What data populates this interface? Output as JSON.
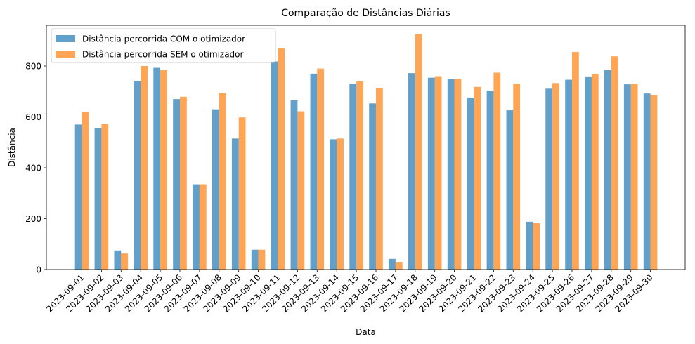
{
  "chart_data": {
    "type": "bar",
    "title": "Comparação de Distâncias Diárias",
    "xlabel": "Data",
    "ylabel": "Distância",
    "ylim": [
      0,
      960
    ],
    "yticks": [
      0,
      200,
      400,
      600,
      800
    ],
    "legend_position": "top-left",
    "grid": false,
    "categories": [
      "2023-09-01",
      "2023-09-02",
      "2023-09-03",
      "2023-09-04",
      "2023-09-05",
      "2023-09-06",
      "2023-09-07",
      "2023-09-08",
      "2023-09-09",
      "2023-09-10",
      "2023-09-11",
      "2023-09-12",
      "2023-09-13",
      "2023-09-14",
      "2023-09-15",
      "2023-09-16",
      "2023-09-17",
      "2023-09-18",
      "2023-09-19",
      "2023-09-20",
      "2023-09-21",
      "2023-09-22",
      "2023-09-23",
      "2023-09-24",
      "2023-09-25",
      "2023-09-26",
      "2023-09-27",
      "2023-09-28",
      "2023-09-29",
      "2023-09-30"
    ],
    "series": [
      {
        "name": "Distância percorrida COM o otimizador",
        "color": "#1f77b4",
        "values": [
          570,
          556,
          75,
          742,
          793,
          670,
          335,
          630,
          515,
          78,
          818,
          665,
          770,
          512,
          730,
          653,
          42,
          772,
          754,
          750,
          676,
          703,
          626,
          188,
          711,
          746,
          759,
          784,
          728,
          692
        ]
      },
      {
        "name": "Distância percorrida SEM o otimizador",
        "color": "#ff7f0e",
        "values": [
          620,
          573,
          63,
          800,
          784,
          679,
          335,
          693,
          598,
          78,
          870,
          622,
          790,
          515,
          740,
          714,
          30,
          926,
          760,
          750,
          718,
          774,
          731,
          183,
          733,
          855,
          767,
          838,
          730,
          684
        ]
      }
    ]
  }
}
